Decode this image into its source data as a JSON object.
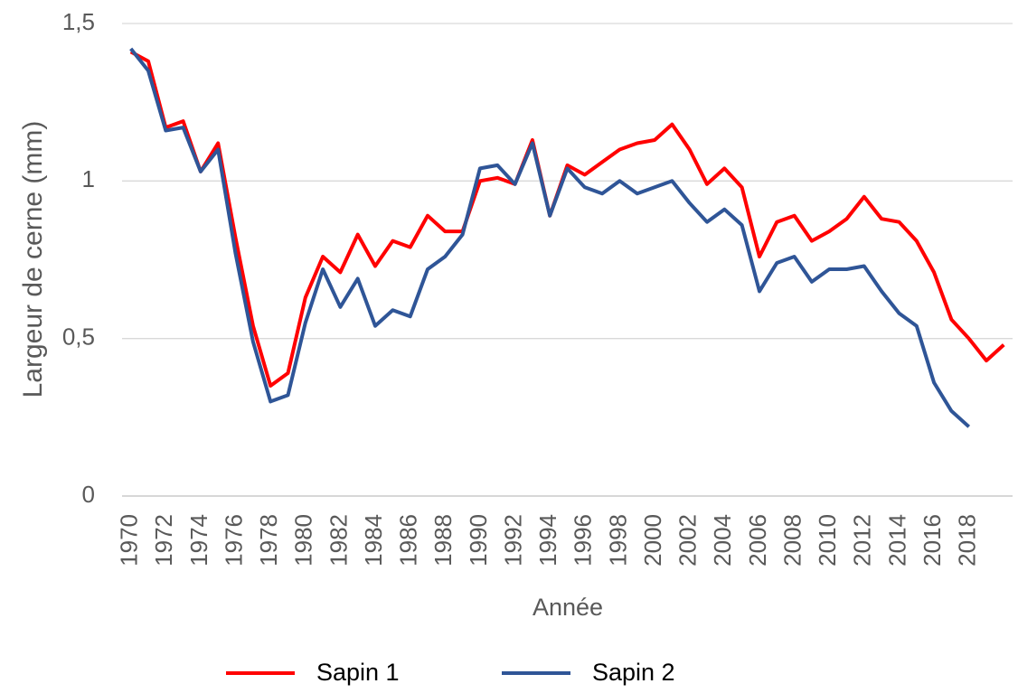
{
  "chart_data": {
    "type": "line",
    "x_label": "Année",
    "y_label": "Largeur de cerne (mm)",
    "x": [
      1970,
      1971,
      1972,
      1973,
      1974,
      1975,
      1976,
      1977,
      1978,
      1979,
      1980,
      1981,
      1982,
      1983,
      1984,
      1985,
      1986,
      1987,
      1988,
      1989,
      1990,
      1991,
      1992,
      1993,
      1994,
      1995,
      1996,
      1997,
      1998,
      1999,
      2000,
      2001,
      2002,
      2003,
      2004,
      2005,
      2006,
      2007,
      2008,
      2009,
      2010,
      2011,
      2012,
      2013,
      2014,
      2015,
      2016,
      2017,
      2018,
      2019,
      2020
    ],
    "xlim": [
      1969.5,
      2020.5
    ],
    "xticks": [
      1970,
      1972,
      1974,
      1976,
      1978,
      1980,
      1982,
      1984,
      1986,
      1988,
      1990,
      1992,
      1994,
      1996,
      1998,
      2000,
      2002,
      2004,
      2006,
      2008,
      2010,
      2012,
      2014,
      2016,
      2018
    ],
    "ylim": [
      0,
      1.5
    ],
    "yticks": [
      0,
      {
        "value": 0.5,
        "label": "0,5"
      },
      1,
      {
        "value": 1.5,
        "label": "1,5"
      }
    ],
    "grid": true,
    "legend": "bottom",
    "series": [
      {
        "name": "Sapin 1",
        "color": "#ff0000",
        "values": [
          1.41,
          1.38,
          1.17,
          1.19,
          1.03,
          1.12,
          0.82,
          0.54,
          0.35,
          0.39,
          0.63,
          0.76,
          0.71,
          0.83,
          0.73,
          0.81,
          0.79,
          0.89,
          0.84,
          0.84,
          1.0,
          1.01,
          0.99,
          1.13,
          0.89,
          1.05,
          1.02,
          1.06,
          1.1,
          1.12,
          1.13,
          1.18,
          1.1,
          0.99,
          1.04,
          0.98,
          0.76,
          0.87,
          0.89,
          0.81,
          0.84,
          0.88,
          0.95,
          0.88,
          0.87,
          0.81,
          0.71,
          0.56,
          0.5,
          0.43,
          0.48
        ]
      },
      {
        "name": "Sapin 2",
        "color": "#2f5597",
        "values": [
          1.42,
          1.35,
          1.16,
          1.17,
          1.03,
          1.1,
          0.77,
          0.49,
          0.3,
          0.32,
          0.55,
          0.72,
          0.6,
          0.69,
          0.54,
          0.59,
          0.57,
          0.72,
          0.76,
          0.83,
          1.04,
          1.05,
          0.99,
          1.12,
          0.89,
          1.04,
          0.98,
          0.96,
          1.0,
          0.96,
          0.98,
          1.0,
          0.93,
          0.87,
          0.91,
          0.86,
          0.65,
          0.74,
          0.76,
          0.68,
          0.72,
          0.72,
          0.73,
          0.65,
          0.58,
          0.54,
          0.36,
          0.27,
          0.22,
          null,
          null
        ]
      }
    ]
  }
}
